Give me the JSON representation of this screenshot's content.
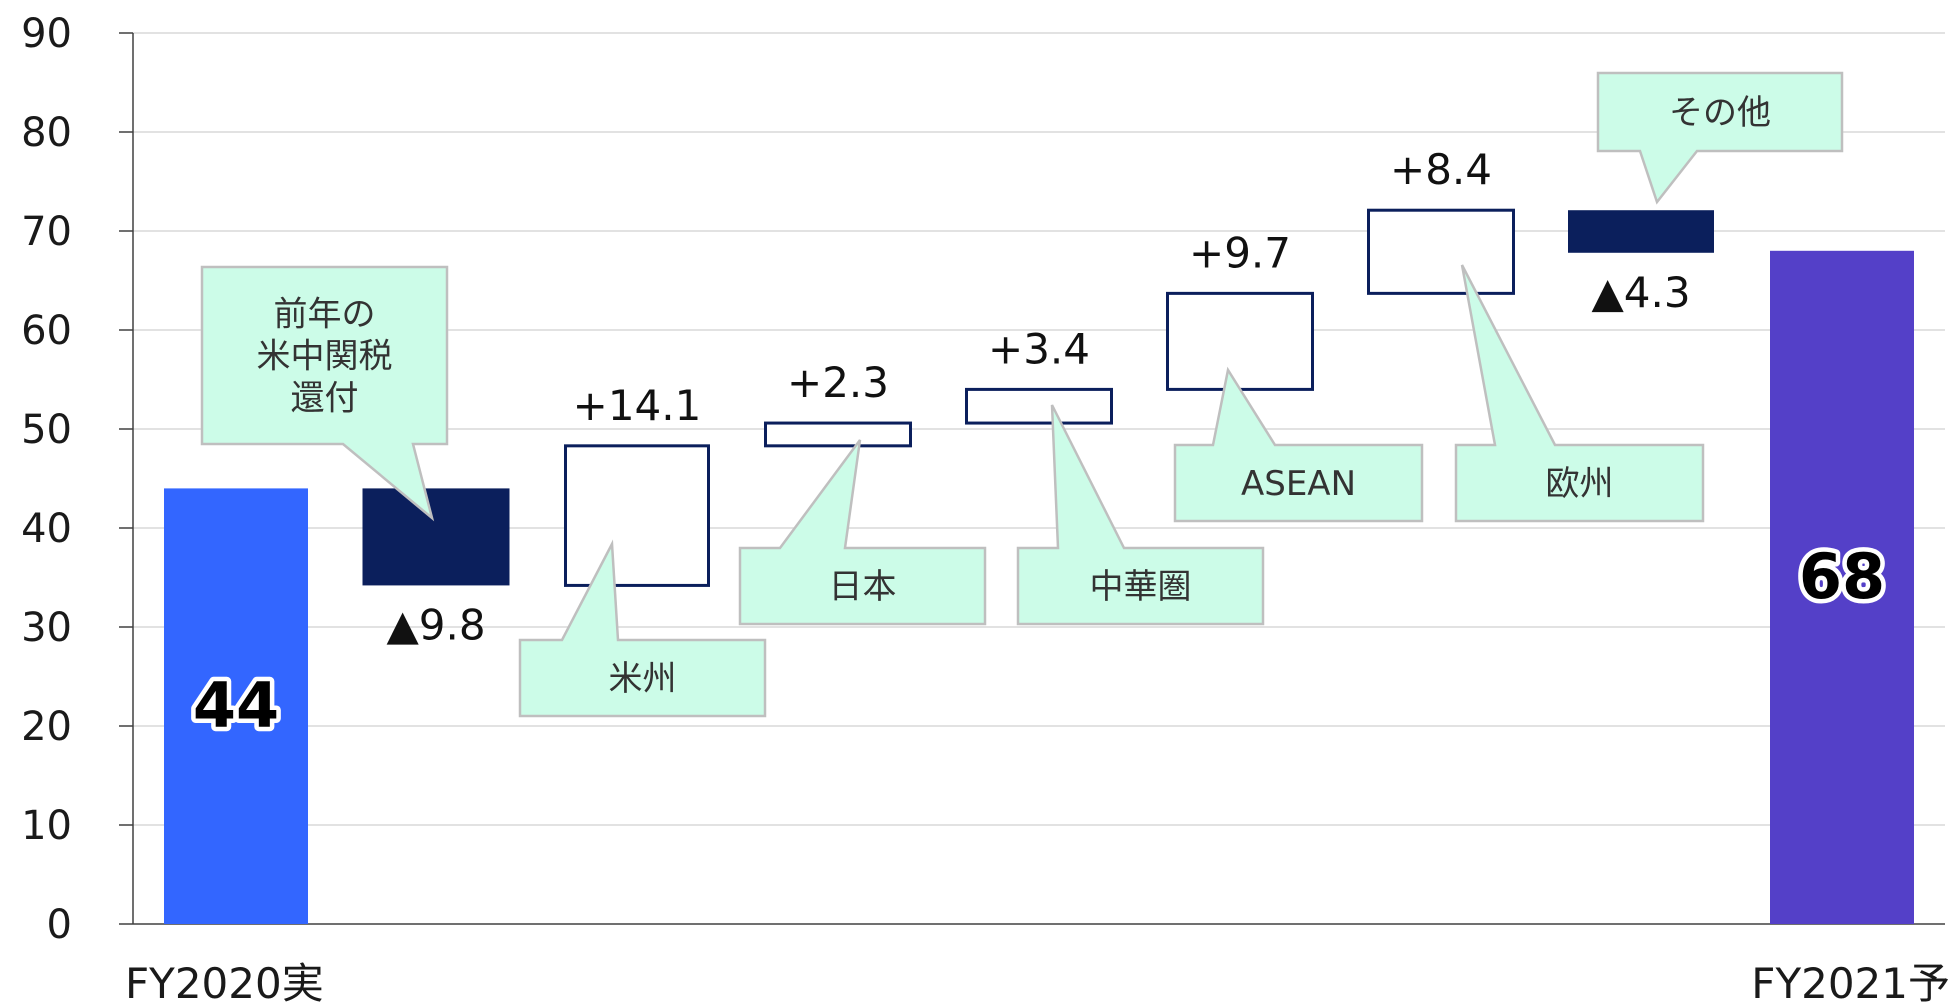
{
  "chart_data": {
    "type": "bar",
    "subtype": "waterfall",
    "title": "",
    "xlabel": "",
    "ylabel": "",
    "ylim": [
      0,
      90
    ],
    "yticks": [
      0,
      10,
      20,
      30,
      40,
      50,
      60,
      70,
      80,
      90
    ],
    "grid": true,
    "legend": "none",
    "categories": [
      "FY2020実",
      "前年の米中関税還付",
      "米州",
      "日本",
      "中華圏",
      "ASEAN",
      "欧州",
      "その他",
      "FY2021予"
    ],
    "steps": [
      {
        "category": "FY2020実",
        "kind": "total",
        "value": 44,
        "label": "44"
      },
      {
        "category": "前年の米中関税還付",
        "kind": "decrease",
        "value": -9.8,
        "label": "▲9.8"
      },
      {
        "category": "米州",
        "kind": "increase",
        "value": 14.1,
        "label": "+14.1"
      },
      {
        "category": "日本",
        "kind": "increase",
        "value": 2.3,
        "label": "+2.3"
      },
      {
        "category": "中華圏",
        "kind": "increase",
        "value": 3.4,
        "label": "+3.4"
      },
      {
        "category": "ASEAN",
        "kind": "increase",
        "value": 9.7,
        "label": "+9.7"
      },
      {
        "category": "欧州",
        "kind": "increase",
        "value": 8.4,
        "label": "+8.4"
      },
      {
        "category": "その他",
        "kind": "decrease",
        "value": -4.3,
        "label": "▲4.3"
      },
      {
        "category": "FY2021予",
        "kind": "total",
        "value": 68,
        "label": "68"
      }
    ],
    "x_axis_labels": [
      "FY2020実",
      "FY2021予"
    ],
    "callouts": [
      {
        "step": 1,
        "lines": [
          "前年の",
          "米中関税",
          "還付"
        ]
      },
      {
        "step": 2,
        "lines": [
          "米州"
        ]
      },
      {
        "step": 3,
        "lines": [
          "日本"
        ]
      },
      {
        "step": 4,
        "lines": [
          "中華圏"
        ]
      },
      {
        "step": 5,
        "lines": [
          "ASEAN"
        ]
      },
      {
        "step": 6,
        "lines": [
          "欧州"
        ]
      },
      {
        "step": 7,
        "lines": [
          "その他"
        ]
      }
    ],
    "colors": {
      "start_total": "#3366ff",
      "end_total": "#5440c8",
      "decrease": "#0b1f5c",
      "increase_fill": "#ffffff",
      "increase_stroke": "#0b1f5c",
      "callout_fill": "#ccfce8",
      "callout_stroke": "#bfbfbf",
      "grid": "#d9d9d9"
    }
  }
}
